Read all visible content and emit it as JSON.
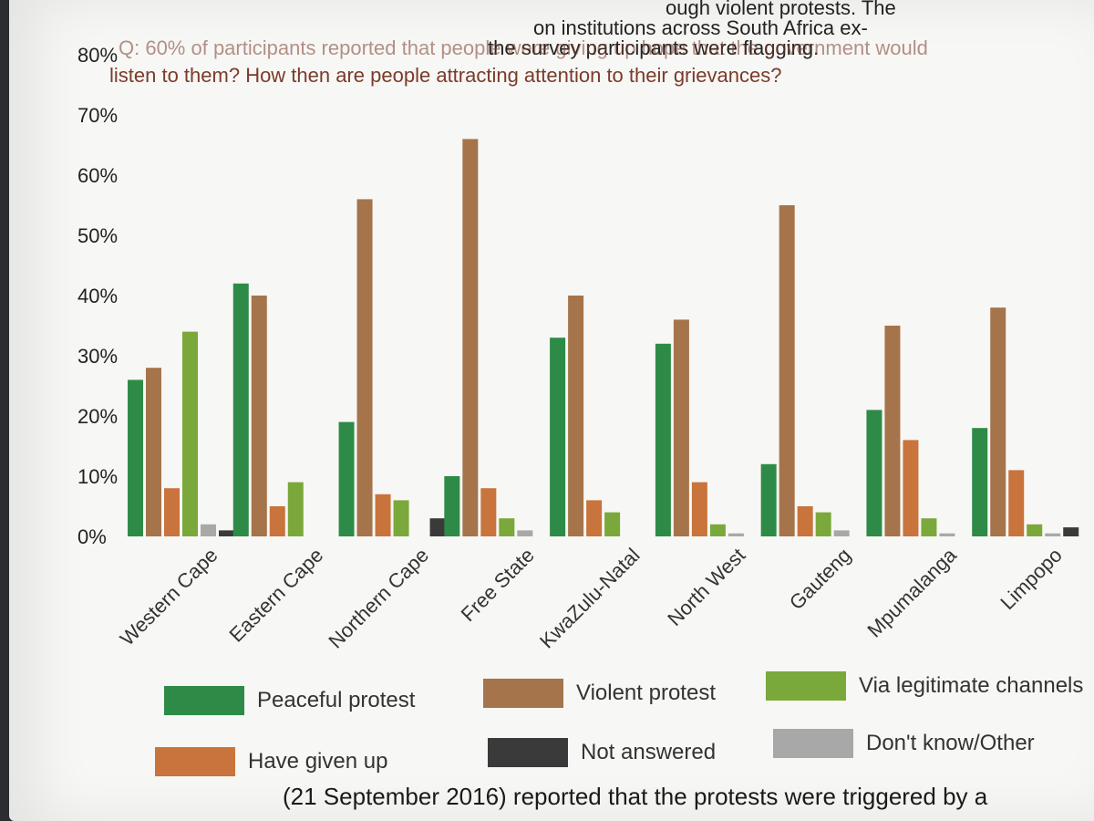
{
  "page": {
    "top_lines": [
      "ough violent protests. The",
      "on institutions across South Africa ex-",
      "the survey participants were flagging."
    ],
    "question_lines": [
      "Q: 60% of participants reported that people were giving up hope that the government would",
      "listen to them? How then are people attracting attention to their grievances?"
    ],
    "bottom_line": "(21 September 2016) reported that the protests were triggered by a"
  },
  "chart_data": {
    "type": "bar",
    "categories": [
      "Western Cape",
      "Eastern Cape",
      "Northern Cape",
      "Free State",
      "KwaZulu-Natal",
      "North West",
      "Gauteng",
      "Mpumalanga",
      "Limpopo"
    ],
    "ylim": [
      0,
      80
    ],
    "y_ticks": [
      0,
      10,
      20,
      30,
      40,
      50,
      60,
      70,
      80
    ],
    "y_tick_labels": [
      "0%",
      "10%",
      "20%",
      "30%",
      "40%",
      "50%",
      "60%",
      "70%",
      "80%"
    ],
    "legend_placement": "bottom",
    "series": [
      {
        "name": "Peaceful protest",
        "color": "#2e8b47",
        "values": [
          26,
          42,
          19,
          10,
          33,
          32,
          12,
          21,
          18
        ]
      },
      {
        "name": "Violent protest",
        "color": "#a6744a",
        "values": [
          28,
          40,
          56,
          66,
          40,
          36,
          55,
          35,
          38
        ]
      },
      {
        "name": "Have given up",
        "color": "#c8743c",
        "values": [
          8,
          5,
          7,
          8,
          6,
          9,
          5,
          16,
          11
        ]
      },
      {
        "name": "Via legitimate channels",
        "color": "#7aa83a",
        "values": [
          34,
          9,
          6,
          3,
          4,
          2,
          4,
          3,
          2
        ]
      },
      {
        "name": "Don't know/Other",
        "color": "#a8a8a8",
        "values": [
          2,
          0,
          0,
          1,
          0,
          0.5,
          1,
          0.5,
          0.5
        ]
      },
      {
        "name": "Not answered",
        "color": "#3a3a3a",
        "values": [
          1,
          0,
          3,
          0,
          0,
          0,
          0,
          0,
          1.5
        ]
      }
    ],
    "legend_order": [
      "Peaceful protest",
      "Violent protest",
      "Via legitimate channels",
      "Have given up",
      "Not answered",
      "Don't know/Other"
    ]
  }
}
